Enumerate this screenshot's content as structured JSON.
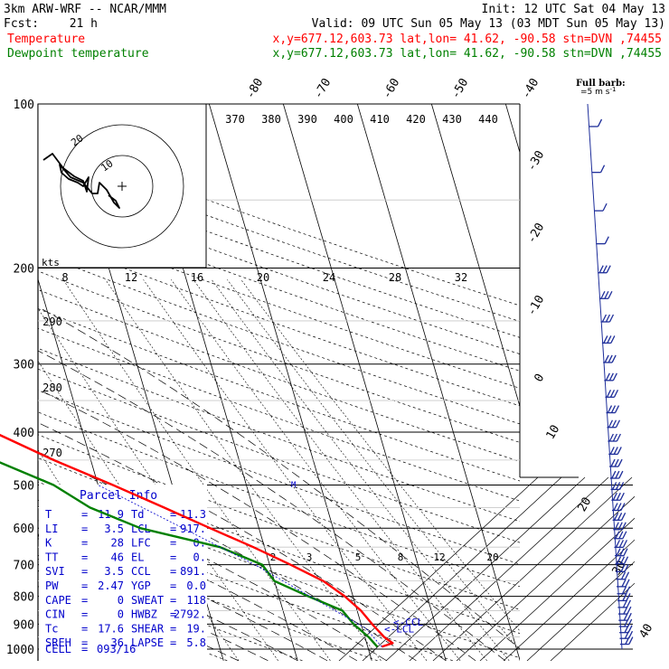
{
  "header": {
    "model": "3km ARW-WRF -- NCAR/MMM",
    "init": "Init: 12 UTC Sat 04 May 13",
    "fcst_label": "Fcst:",
    "fcst_hours": "21 h",
    "valid": "Valid: 09 UTC Sun 05 May 13 (03 MDT Sun 05 May 13)",
    "temp_label": "Temperature",
    "dew_label": "Dewpoint temperature",
    "location": "x,y=677.12,603.73   lat,lon= 41.62, -90.58   stn=DVN ,74455"
  },
  "colors": {
    "temperature": "#ff0000",
    "dewpoint": "#008000",
    "parcel_text": "#0000cc",
    "barbs": "#1e2e9a",
    "grid": "#000000"
  },
  "wind_legend": {
    "title": "Full barb:",
    "value": "5 m s",
    "exponent": "-1"
  },
  "parcel_info": {
    "title": "Parcel Info",
    "rows": [
      {
        "l1": "T",
        "v1": "11.9",
        "l2": "Td",
        "v2": "11.3"
      },
      {
        "l1": "LI",
        "v1": "3.5",
        "l2": "LCL",
        "v2": "917."
      },
      {
        "l1": "K",
        "v1": "28",
        "l2": "LFC",
        "v2": "0."
      },
      {
        "l1": "TT",
        "v1": "46",
        "l2": "EL",
        "v2": "0."
      },
      {
        "l1": "SVI",
        "v1": "3.5",
        "l2": "CCL",
        "v2": "891."
      },
      {
        "l1": "PW",
        "v1": "2.47",
        "l2": "YGP",
        "v2": "0.0"
      },
      {
        "l1": "CAPE",
        "v1": "0",
        "l2": "SWEAT",
        "v2": "118"
      },
      {
        "l1": "CIN",
        "v1": "0",
        "l2": "HWBZ",
        "v2": "2792."
      },
      {
        "l1": "Tc",
        "v1": "17.6",
        "l2": "SHEAR",
        "v2": "19."
      },
      {
        "l1": "SREH",
        "v1": "36",
        "l2": "LAPSE",
        "v2": "5.8"
      }
    ],
    "cell_label": "CELL",
    "cell_value": "093/16"
  },
  "lcl_label": "LCL",
  "ccl_label": "CCL",
  "hodograph": {
    "units": "kts",
    "ring_labels": [
      "10",
      "20"
    ]
  },
  "chart_data": {
    "type": "line",
    "diagram": "skew-T log-P",
    "pressure_levels": [
      100,
      200,
      300,
      400,
      500,
      600,
      700,
      800,
      900,
      1000
    ],
    "pressure_range": [
      1000,
      100
    ],
    "isotherm_labels": [
      "-80",
      "-70",
      "-60",
      "-50",
      "-40",
      "-30",
      "-20",
      "-10",
      "0",
      "10",
      "20",
      "30",
      "40"
    ],
    "theta_labels_top": [
      "370",
      "380",
      "390",
      "400",
      "410",
      "420",
      "430",
      "440"
    ],
    "theta_labels_left": [
      "290",
      "280",
      "270"
    ],
    "mixing_ratio_labels_upper": [
      "8",
      "12",
      "16",
      "20",
      "24",
      "28",
      "32"
    ],
    "mixing_ratio_labels_lower": [
      "2",
      "3",
      "5",
      "8",
      "12",
      "20"
    ],
    "series": [
      {
        "name": "Temperature",
        "points": [
          {
            "p": 100,
            "t": -59
          },
          {
            "p": 120,
            "t": -58
          },
          {
            "p": 150,
            "t": -57
          },
          {
            "p": 170,
            "t": -60
          },
          {
            "p": 185,
            "t": -62
          },
          {
            "p": 205,
            "t": -62
          },
          {
            "p": 230,
            "t": -59
          },
          {
            "p": 260,
            "t": -54
          },
          {
            "p": 300,
            "t": -48
          },
          {
            "p": 350,
            "t": -39.5
          },
          {
            "p": 400,
            "t": -32
          },
          {
            "p": 450,
            "t": -25
          },
          {
            "p": 500,
            "t": -18
          },
          {
            "p": 550,
            "t": -12
          },
          {
            "p": 600,
            "t": -6.6
          },
          {
            "p": 650,
            "t": -1.5
          },
          {
            "p": 700,
            "t": 2.8
          },
          {
            "p": 750,
            "t": 6.6
          },
          {
            "p": 800,
            "t": 8.9
          },
          {
            "p": 850,
            "t": 10.5
          },
          {
            "p": 900,
            "t": 11.5
          },
          {
            "p": 950,
            "t": 12.6
          },
          {
            "p": 975,
            "t": 13.5
          },
          {
            "p": 990,
            "t": 11.9
          }
        ]
      },
      {
        "name": "Dewpoint temperature",
        "points": [
          {
            "p": 100,
            "t": -80
          },
          {
            "p": 120,
            "t": -78
          },
          {
            "p": 140,
            "t": -78
          },
          {
            "p": 160,
            "t": -76
          },
          {
            "p": 180,
            "t": -76
          },
          {
            "p": 200,
            "t": -71
          },
          {
            "p": 230,
            "t": -68
          },
          {
            "p": 260,
            "t": -62
          },
          {
            "p": 300,
            "t": -54
          },
          {
            "p": 350,
            "t": -45
          },
          {
            "p": 400,
            "t": -36
          },
          {
            "p": 450,
            "t": -33
          },
          {
            "p": 500,
            "t": -26
          },
          {
            "p": 550,
            "t": -22
          },
          {
            "p": 600,
            "t": -16
          },
          {
            "p": 650,
            "t": -6
          },
          {
            "p": 700,
            "t": -1
          },
          {
            "p": 750,
            "t": 0
          },
          {
            "p": 800,
            "t": 4
          },
          {
            "p": 850,
            "t": 8
          },
          {
            "p": 900,
            "t": 9
          },
          {
            "p": 950,
            "t": 10.5
          },
          {
            "p": 975,
            "t": 11
          },
          {
            "p": 990,
            "t": 11.3
          }
        ]
      }
    ]
  }
}
